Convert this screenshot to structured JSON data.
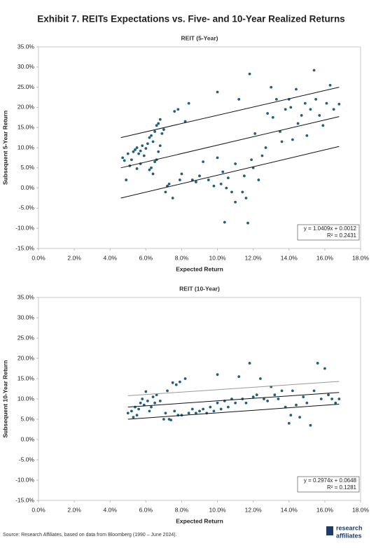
{
  "title": "Exhibit 7. REITs Expectations vs. Five- and 10-Year Realized Returns",
  "source": "Source: Research Affiliates, based on data from Bloomberg (1990 – June 2024).",
  "logo": [
    "research",
    "affiliates"
  ],
  "chart_data": [
    {
      "type": "scatter",
      "title": "REIT (5-Year)",
      "x_label": "Expected Return",
      "y_label": "Subsequent 5-Year Return",
      "xlim": [
        0,
        18
      ],
      "ylim": [
        -15,
        35
      ],
      "xticks": [
        {
          "value": 0,
          "label": "0.0%"
        },
        {
          "value": 2,
          "label": "2.0%"
        },
        {
          "value": 4,
          "label": "4.0%"
        },
        {
          "value": 6,
          "label": "6.0%"
        },
        {
          "value": 8,
          "label": "8.0%"
        },
        {
          "value": 10,
          "label": "10.0%"
        },
        {
          "value": 12,
          "label": "12.0%"
        },
        {
          "value": 14,
          "label": "14.0%"
        },
        {
          "value": 16,
          "label": "16.0%"
        },
        {
          "value": 18,
          "label": "18.0%"
        }
      ],
      "yticks": [
        {
          "value": 35,
          "label": "35.0%"
        },
        {
          "value": 30,
          "label": "30.0%"
        },
        {
          "value": 25,
          "label": "25.0%"
        },
        {
          "value": 20,
          "label": "20.0%"
        },
        {
          "value": 15,
          "label": "15.0%"
        },
        {
          "value": 10,
          "label": "10.0%"
        },
        {
          "value": 5,
          "label": "5.0%"
        },
        {
          "value": 0,
          "label": "0.0%"
        },
        {
          "value": -5,
          "label": "-5.0%"
        },
        {
          "value": -10,
          "label": "-10.0%"
        },
        {
          "value": -15,
          "label": "-15.0%"
        }
      ],
      "series": [
        {
          "color": "#21607b",
          "x": [
            4.7,
            4.8,
            4.9,
            5.0,
            5.1,
            5.2,
            5.3,
            5.4,
            5.5,
            5.6,
            5.7,
            5.8,
            5.9,
            6.0,
            5.5,
            5.7,
            6.1,
            6.2,
            6.3,
            6.4,
            6.5,
            6.6,
            6.7,
            6.8,
            6.9,
            6.2,
            6.3,
            6.4,
            6.5,
            6.6,
            6.7,
            6.8,
            7.0,
            7.1,
            7.2,
            7.3,
            7.5,
            7.6,
            7.8,
            7.9,
            8.0,
            8.2,
            8.4,
            8.6,
            8.8,
            9.0,
            9.2,
            9.5,
            9.8,
            10.0,
            10.0,
            10.2,
            10.3,
            10.4,
            10.5,
            10.6,
            10.8,
            11.0,
            11.0,
            11.2,
            11.4,
            11.5,
            11.6,
            11.7,
            11.8,
            11.9,
            12.0,
            12.1,
            12.3,
            12.5,
            12.7,
            12.8,
            13.0,
            13.1,
            13.3,
            13.5,
            13.6,
            13.8,
            14.0,
            14.1,
            14.2,
            14.4,
            14.5,
            14.7,
            14.9,
            15.0,
            15.2,
            15.4,
            15.5,
            15.7,
            15.9,
            16.1,
            16.3,
            16.5,
            16.8
          ],
          "values": [
            7.5,
            6.8,
            2,
            8.5,
            5.5,
            7,
            9,
            9.5,
            10,
            8.5,
            9.2,
            10.5,
            8,
            9.8,
            4.8,
            6,
            11,
            12.5,
            13,
            11.5,
            14,
            15.5,
            16,
            17,
            13.5,
            4.5,
            5,
            3.5,
            6.5,
            7,
            9,
            10.5,
            14.5,
            -1,
            0.5,
            1,
            -2.5,
            19,
            19.5,
            2,
            3.5,
            16.5,
            21,
            2,
            1.5,
            3,
            6.5,
            2,
            0.5,
            23.8,
            7.5,
            1,
            4,
            -8.5,
            0,
            2.5,
            -1,
            -3.5,
            6,
            22,
            -1,
            3,
            -2.5,
            -8.7,
            28.3,
            7,
            5,
            13.5,
            2,
            8,
            10,
            18.5,
            25,
            17.5,
            22,
            14,
            11.5,
            19.5,
            22,
            20,
            12,
            24.5,
            16,
            18,
            21,
            13,
            19.5,
            29.2,
            22,
            18,
            15.5,
            21,
            25.5,
            19.5,
            20.8
          ]
        }
      ],
      "trend_lines": [
        {
          "color": "#111111",
          "x": [
            4.6,
            16.8
          ],
          "values": [
            12.5,
            25
          ]
        },
        {
          "color": "#111111",
          "x": [
            4.6,
            16.8
          ],
          "values": [
            5,
            17.7
          ]
        },
        {
          "color": "#111111",
          "x": [
            4.6,
            16.8
          ],
          "values": [
            -2.5,
            10.3
          ]
        }
      ],
      "annotations": [
        "y = 1.0409x + 0.0012",
        "R² = 0.2431"
      ]
    },
    {
      "type": "scatter",
      "title": "REIT (10-Year)",
      "x_label": "Expected Return",
      "y_label": "Subsequent 10-Year Return",
      "xlim": [
        0,
        18
      ],
      "ylim": [
        -15,
        35
      ],
      "xticks": [
        {
          "value": 0,
          "label": "0.0%"
        },
        {
          "value": 2,
          "label": "2.0%"
        },
        {
          "value": 4,
          "label": "4.0%"
        },
        {
          "value": 6,
          "label": "6.0%"
        },
        {
          "value": 8,
          "label": "8.0%"
        },
        {
          "value": 10,
          "label": "10.0%"
        },
        {
          "value": 12,
          "label": "12.0%"
        },
        {
          "value": 14,
          "label": "14.0%"
        },
        {
          "value": 16,
          "label": "16.0%"
        },
        {
          "value": 18,
          "label": "18.0%"
        }
      ],
      "yticks": [
        {
          "value": 35,
          "label": "35.0%"
        },
        {
          "value": 30,
          "label": "30.0%"
        },
        {
          "value": 25,
          "label": "25.0%"
        },
        {
          "value": 20,
          "label": "20.0%"
        },
        {
          "value": 15,
          "label": "15.0%"
        },
        {
          "value": 10,
          "label": "10.0%"
        },
        {
          "value": 5,
          "label": "5.0%"
        },
        {
          "value": 0,
          "label": "0.0%"
        },
        {
          "value": -5,
          "label": "-5.0%"
        },
        {
          "value": -10,
          "label": "-10.0%"
        },
        {
          "value": -15,
          "label": "-15.0%"
        }
      ],
      "series": [
        {
          "color": "#21607b",
          "x": [
            5.0,
            5.2,
            5.3,
            5.4,
            5.5,
            5.6,
            5.7,
            5.8,
            5.9,
            6.0,
            6.1,
            6.2,
            6.3,
            6.4,
            6.5,
            6.6,
            6.8,
            7.0,
            7.1,
            7.2,
            7.3,
            7.4,
            7.5,
            7.6,
            7.7,
            7.8,
            7.9,
            8.0,
            8.2,
            8.4,
            8.6,
            8.8,
            9.0,
            9.2,
            9.4,
            9.6,
            9.8,
            10.0,
            10.0,
            10.2,
            10.4,
            10.6,
            10.8,
            11.0,
            11.2,
            11.4,
            11.6,
            11.8,
            12.0,
            12.2,
            12.4,
            12.6,
            12.8,
            13.0,
            13.2,
            13.4,
            13.6,
            13.8,
            14.0,
            14.1,
            14.2,
            14.4,
            14.6,
            14.8,
            15.0,
            15.2,
            15.4,
            15.6,
            15.8,
            16.0,
            16.2,
            16.4,
            16.6,
            16.8
          ],
          "values": [
            6.5,
            7,
            5.5,
            8,
            6,
            7.5,
            9,
            10,
            8.5,
            11.8,
            9.5,
            7,
            8,
            10.5,
            9,
            11,
            9.5,
            5,
            6.5,
            12,
            5,
            4.8,
            14,
            7,
            13.5,
            6,
            14.2,
            6,
            15,
            6.5,
            7.5,
            6.5,
            7,
            7.5,
            6.5,
            8,
            7,
            16,
            9,
            7.5,
            9.5,
            8,
            10,
            9,
            15.5,
            10,
            9,
            18.8,
            10.5,
            11,
            15,
            10,
            9.5,
            13,
            11,
            10,
            12,
            8,
            4,
            6,
            12,
            8.5,
            5.5,
            10.5,
            9,
            3.5,
            12,
            18.8,
            10,
            17.5,
            11,
            10,
            9,
            10
          ]
        }
      ],
      "trend_lines": [
        {
          "color": "#999999",
          "x": [
            5,
            16.8
          ],
          "values": [
            10.8,
            14.3
          ]
        },
        {
          "color": "#111111",
          "x": [
            5,
            16.8
          ],
          "values": [
            8,
            11.6
          ]
        },
        {
          "color": "#111111",
          "x": [
            5,
            16.8
          ],
          "values": [
            5,
            8.7
          ]
        }
      ],
      "annotations": [
        "y = 0.2974x + 0.0648",
        "R² = 0.1281"
      ]
    }
  ]
}
